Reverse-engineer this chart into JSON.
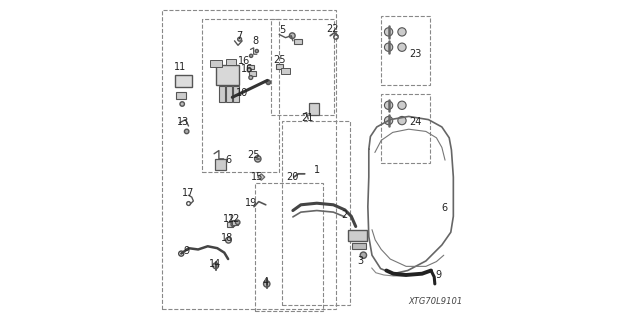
{
  "bg_color": "#ffffff",
  "diagram_color": "#555555",
  "dashed_color": "#888888",
  "label_fontsize": 7,
  "label_color": "#222222",
  "diagram_ref": "XTG70L9101"
}
